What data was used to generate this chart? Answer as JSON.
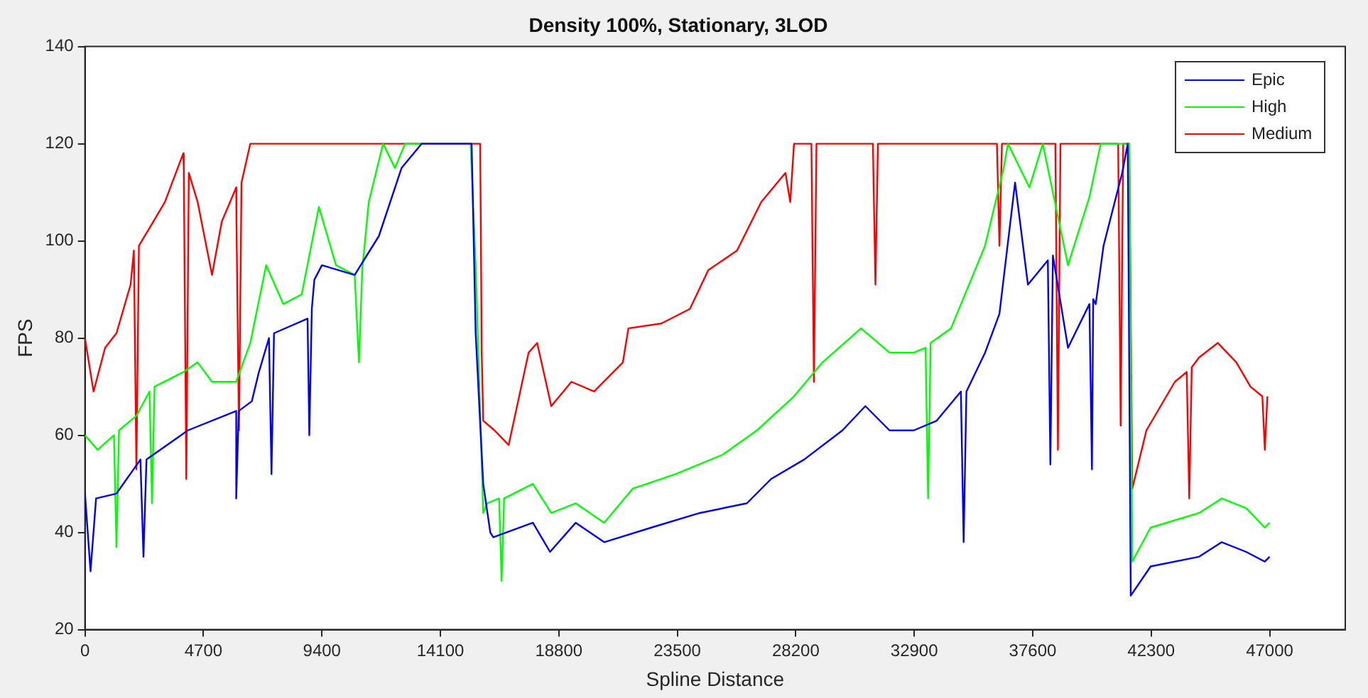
{
  "chart_data": {
    "type": "line",
    "title": "Density 100%, Stationary, 3LOD",
    "xlabel": "Spline Distance",
    "ylabel": "FPS",
    "xlim": [
      0,
      50000
    ],
    "xticks": [
      0,
      4700,
      9400,
      14100,
      18800,
      23500,
      28200,
      32900,
      37600,
      42300,
      47000
    ],
    "ylim": [
      20,
      140
    ],
    "yticks": [
      20,
      40,
      60,
      80,
      100,
      120,
      140
    ],
    "grid": false,
    "legend": "top right",
    "marker": "none",
    "line_style": "solid",
    "series": [
      {
        "name": "Epic",
        "color": "#0000ff",
        "x": [
          0,
          220,
          440,
          1250,
          2200,
          2320,
          2440,
          4080,
          6000,
          6000,
          6100,
          6620,
          6900,
          7300,
          7400,
          7500,
          8830,
          8900,
          9000,
          9100,
          9400,
          10700,
          11660,
          12560,
          13360,
          15000,
          15340,
          15500,
          15800,
          16080,
          16200,
          17770,
          18450,
          19470,
          20600,
          22470,
          24390,
          26260,
          27220,
          28530,
          30050,
          30960,
          31920,
          32880,
          33790,
          34750,
          34860,
          34970,
          35710,
          36280,
          36900,
          37410,
          38200,
          38300,
          38400,
          39000,
          39850,
          39950,
          40000,
          40100,
          40410,
          41150,
          41370,
          41490,
          42280,
          44200,
          45100,
          46070,
          46810,
          47000
        ],
        "values": [
          48,
          32,
          47,
          48,
          55,
          35,
          55,
          61,
          65,
          47,
          65,
          67,
          73,
          80,
          52,
          81,
          84,
          60,
          86,
          92,
          95,
          93,
          101,
          115,
          120,
          120,
          120,
          81,
          50,
          40,
          39,
          42,
          36,
          42,
          38,
          41,
          44,
          46,
          51,
          55,
          61,
          66,
          61,
          61,
          63,
          69,
          38,
          69,
          77,
          85,
          112,
          91,
          96,
          54,
          97,
          78,
          87,
          53,
          88,
          87,
          99,
          114,
          120,
          27,
          33,
          35,
          38,
          36,
          34,
          35
        ]
      },
      {
        "name": "High",
        "color": "#00ff00",
        "x": [
          0,
          500,
          1150,
          1250,
          1350,
          2040,
          2560,
          2660,
          2760,
          3900,
          4470,
          5040,
          6000,
          6560,
          7190,
          7870,
          8600,
          9280,
          9960,
          10700,
          10870,
          11000,
          11260,
          11830,
          12300,
          12700,
          15300,
          15500,
          15800,
          15960,
          16430,
          16530,
          16630,
          17770,
          18500,
          19470,
          20600,
          21730,
          23430,
          25300,
          26660,
          28130,
          29260,
          30790,
          31920,
          32880,
          33350,
          33450,
          33550,
          34360,
          35710,
          36450,
          36620,
          37470,
          38000,
          39000,
          39850,
          40300,
          41430,
          41550,
          42280,
          44200,
          45100,
          46070,
          46810,
          47000
        ],
        "values": [
          60,
          57,
          60,
          37,
          61,
          64,
          69,
          46,
          70,
          73,
          75,
          71,
          71,
          79,
          95,
          87,
          89,
          107,
          95,
          93,
          75,
          94,
          108,
          120,
          115,
          120,
          120,
          95,
          44,
          46,
          47,
          30,
          47,
          50,
          44,
          46,
          42,
          49,
          52,
          56,
          61,
          68,
          75,
          82,
          77,
          77,
          78,
          47,
          79,
          82,
          99,
          115,
          120,
          111,
          120,
          95,
          109,
          120,
          120,
          34,
          41,
          44,
          47,
          45,
          41,
          42
        ]
      },
      {
        "name": "Medium",
        "color": "#ff0000",
        "x": [
          0,
          340,
          800,
          1250,
          1810,
          1940,
          2040,
          2140,
          2600,
          3170,
          3900,
          3920,
          4020,
          4120,
          4470,
          5040,
          5430,
          6000,
          6010,
          6110,
          6210,
          6560,
          15680,
          15740,
          15800,
          16250,
          16810,
          17600,
          17940,
          18500,
          19300,
          20200,
          21340,
          21560,
          22870,
          24000,
          24730,
          25870,
          26830,
          27790,
          27980,
          28130,
          28820,
          28920,
          29020,
          31260,
          31360,
          31460,
          36180,
          36280,
          36380,
          38500,
          38600,
          38700,
          40990,
          41090,
          41190,
          41430,
          41550,
          42110,
          43240,
          43710,
          43810,
          43910,
          44200,
          44940,
          45680,
          46240,
          46710,
          46810,
          46910
        ],
        "values": [
          80,
          69,
          78,
          81,
          91,
          98,
          53,
          99,
          103,
          108,
          118,
          115,
          51,
          114,
          108,
          93,
          104,
          111,
          104,
          61,
          112,
          120,
          120,
          77,
          63,
          61,
          58,
          77,
          79,
          66,
          71,
          69,
          75,
          82,
          83,
          86,
          94,
          98,
          108,
          114,
          108,
          120,
          120,
          71,
          120,
          120,
          91,
          120,
          120,
          99,
          120,
          120,
          57,
          120,
          120,
          62,
          120,
          120,
          49,
          61,
          71,
          73,
          47,
          74,
          76,
          79,
          75,
          70,
          68,
          57,
          68
        ]
      }
    ]
  }
}
